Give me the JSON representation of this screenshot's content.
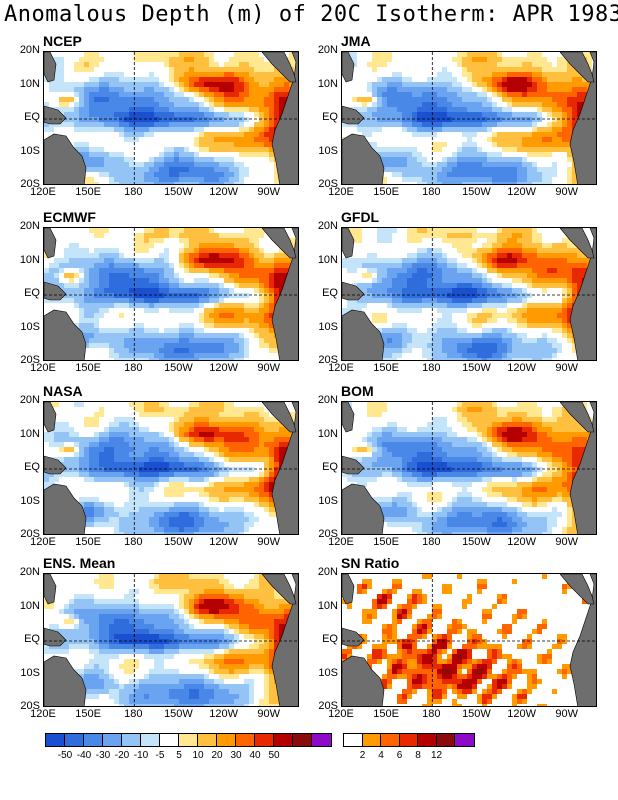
{
  "title": "Anomalous Depth (m) of 20C Isotherm: APR 1983",
  "lat_labels": [
    "20N",
    "10N",
    "EQ",
    "10S",
    "20S"
  ],
  "lon_labels": [
    "120E",
    "150E",
    "180",
    "150W",
    "120W",
    "90W"
  ],
  "colors": {
    "land": "#6e6e6e",
    "dash": "#000000"
  },
  "panels": [
    {
      "id": "ncep",
      "label": "NCEP",
      "kind": "anomaly",
      "seed": 11
    },
    {
      "id": "jma",
      "label": "JMA",
      "kind": "anomaly",
      "seed": 23
    },
    {
      "id": "ecmwf",
      "label": "ECMWF",
      "kind": "anomaly",
      "seed": 37
    },
    {
      "id": "gfdl",
      "label": "GFDL",
      "kind": "anomaly",
      "seed": 41
    },
    {
      "id": "nasa",
      "label": "NASA",
      "kind": "anomaly",
      "seed": 53
    },
    {
      "id": "bom",
      "label": "BOM",
      "kind": "anomaly",
      "seed": 67
    },
    {
      "id": "ens",
      "label": "ENS. Mean",
      "kind": "anomaly",
      "seed": 79
    },
    {
      "id": "sn",
      "label": "SN Ratio",
      "kind": "snratio",
      "seed": 97
    }
  ],
  "anomaly_colorbar": {
    "colors": [
      "#1a50d0",
      "#2f6cdc",
      "#4a88e8",
      "#6aa4f0",
      "#94c4f6",
      "#c4e4fa",
      "#ffffff",
      "#ffe890",
      "#ffc040",
      "#ff9a00",
      "#ff6400",
      "#e82800",
      "#b40000",
      "#8c0a0a",
      "#8c0cc8"
    ],
    "labels": [
      "-50",
      "-40",
      "-30",
      "-20",
      "-10",
      "-5",
      "5",
      "10",
      "20",
      "30",
      "40",
      "50"
    ]
  },
  "sn_colorbar": {
    "colors": [
      "#ffffff",
      "#ff9a00",
      "#ff6400",
      "#e82800",
      "#b40000",
      "#8c0a0a",
      "#8c0cc8"
    ],
    "labels": [
      "2",
      "4",
      "6",
      "8",
      "12"
    ]
  },
  "chart_data": {
    "type": "heatmap",
    "title": "Anomalous Depth (m) of 20C Isotherm: APR 1983",
    "x_axis": {
      "range": [
        "120E",
        "70W"
      ],
      "ticks": [
        "120E",
        "150E",
        "180",
        "150W",
        "120W",
        "90W"
      ]
    },
    "y_axis": {
      "range": [
        "20S",
        "20N"
      ],
      "ticks": [
        "20N",
        "10N",
        "EQ",
        "10S",
        "20S"
      ]
    },
    "units": "m",
    "series": [
      {
        "name": "NCEP"
      },
      {
        "name": "JMA"
      },
      {
        "name": "ECMWF"
      },
      {
        "name": "GFDL"
      },
      {
        "name": "NASA"
      },
      {
        "name": "BOM"
      },
      {
        "name": "ENS. Mean"
      },
      {
        "name": "SN Ratio"
      }
    ],
    "anomaly_levels": [
      -50,
      -40,
      -30,
      -20,
      -10,
      -5,
      5,
      10,
      20,
      30,
      40,
      50
    ],
    "sn_levels": [
      2,
      4,
      6,
      8,
      12
    ],
    "reference_lines": [
      "EQ",
      "180"
    ],
    "grid": false
  }
}
